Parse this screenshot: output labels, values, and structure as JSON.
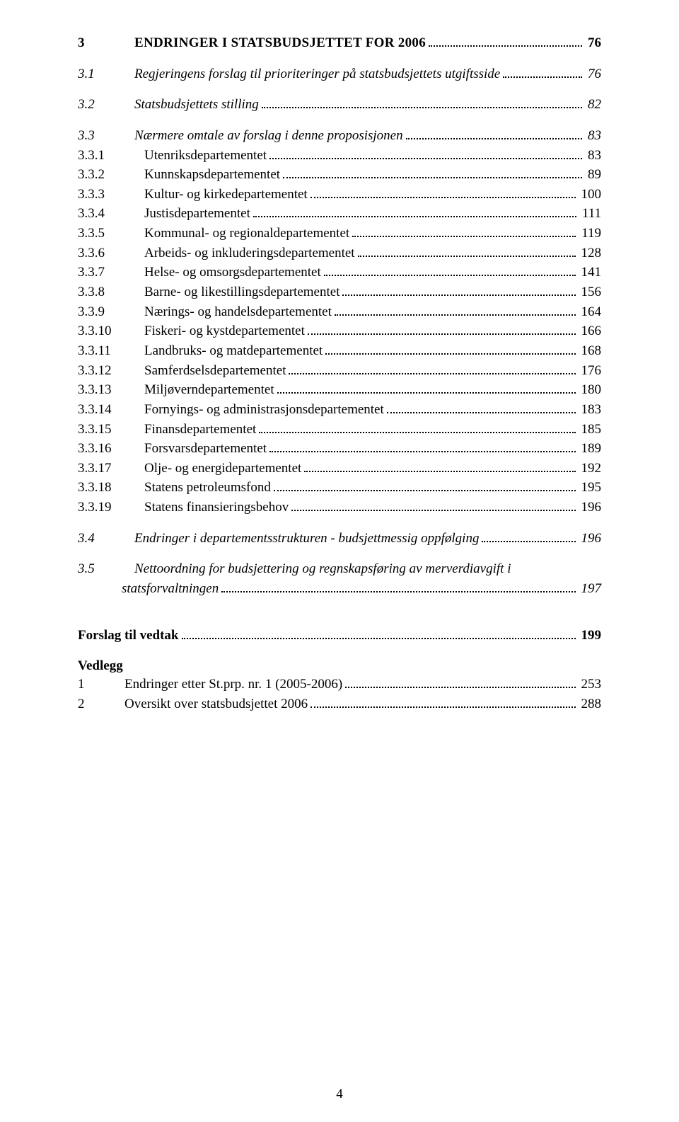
{
  "chapter": {
    "num": "3",
    "title": "ENDRINGER I STATSBUDSJETTET FOR 2006",
    "page": "76"
  },
  "sections_top": [
    {
      "num": "3.1",
      "label": "Regjeringens forslag til prioriteringer på statsbudsjettets utgiftsside",
      "page": "76",
      "italic": true
    },
    {
      "num": "3.2",
      "label": "Statsbudsjettets stilling",
      "page": "82",
      "italic": true
    },
    {
      "num": "3.3",
      "label": "Nærmere omtale av forslag i denne proposisjonen",
      "page": "83",
      "italic": true
    }
  ],
  "subsections": [
    {
      "num": "3.3.1",
      "label": "Utenriksdepartementet",
      "page": "83"
    },
    {
      "num": "3.3.2",
      "label": "Kunnskapsdepartementet",
      "page": "89"
    },
    {
      "num": "3.3.3",
      "label": "Kultur- og kirkedepartementet",
      "page": "100"
    },
    {
      "num": "3.3.4",
      "label": "Justisdepartementet",
      "page": "111"
    },
    {
      "num": "3.3.5",
      "label": "Kommunal- og regionaldepartementet",
      "page": "119"
    },
    {
      "num": "3.3.6",
      "label": "Arbeids- og inkluderingsdepartementet",
      "page": "128"
    },
    {
      "num": "3.3.7",
      "label": "Helse- og omsorgsdepartementet",
      "page": "141"
    },
    {
      "num": "3.3.8",
      "label": "Barne- og likestillingsdepartementet",
      "page": "156"
    },
    {
      "num": "3.3.9",
      "label": "Nærings- og handelsdepartementet",
      "page": "164"
    },
    {
      "num": "3.3.10",
      "label": "Fiskeri- og kystdepartementet",
      "page": "166"
    },
    {
      "num": "3.3.11",
      "label": "Landbruks- og matdepartementet",
      "page": "168"
    },
    {
      "num": "3.3.12",
      "label": "Samferdselsdepartementet",
      "page": "176"
    },
    {
      "num": "3.3.13",
      "label": "Miljøverndepartementet",
      "page": "180"
    },
    {
      "num": "3.3.14",
      "label": "Fornyings- og administrasjonsdepartementet",
      "page": "183"
    },
    {
      "num": "3.3.15",
      "label": "Finansdepartementet",
      "page": "185"
    },
    {
      "num": "3.3.16",
      "label": "Forsvarsdepartementet",
      "page": "189"
    },
    {
      "num": "3.3.17",
      "label": "Olje- og energidepartementet",
      "page": "192"
    },
    {
      "num": "3.3.18",
      "label": "Statens petroleumsfond",
      "page": "195"
    },
    {
      "num": "3.3.19",
      "label": "Statens finansieringsbehov",
      "page": "196"
    }
  ],
  "sections_bottom": [
    {
      "num": "3.4",
      "label": "Endringer i departementsstrukturen - budsjettmessig oppfølging",
      "page": "196",
      "italic": true
    },
    {
      "num": "3.5",
      "label_line1": "Nettoordning for budsjettering og regnskapsføring av merverdiavgift i",
      "label_line2": "statsforvaltningen",
      "page": "197",
      "italic": true
    }
  ],
  "forslag": {
    "label": "Forslag til vedtak",
    "page": "199"
  },
  "vedlegg_title": "Vedlegg",
  "vedlegg": [
    {
      "num": "1",
      "label": "Endringer etter St.prp. nr. 1 (2005-2006)",
      "page": "253"
    },
    {
      "num": "2",
      "label": "Oversikt over statsbudsjettet 2006",
      "page": "288"
    }
  ],
  "page_number": "4"
}
